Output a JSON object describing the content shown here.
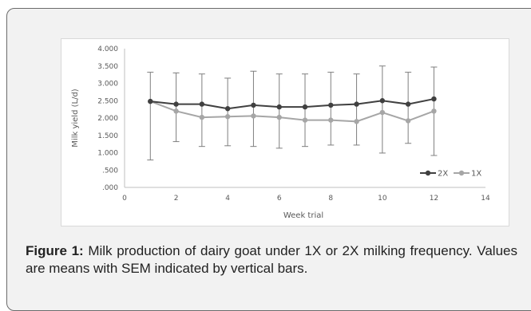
{
  "chart_data": {
    "type": "line",
    "xlabel": "Week trial",
    "ylabel": "Milk yield (L/d)",
    "xlim": [
      0,
      14
    ],
    "ylim": [
      0,
      4
    ],
    "xticks": [
      "0",
      "2",
      "4",
      "6",
      "8",
      "10",
      "12",
      "14"
    ],
    "yticks": [
      ".000",
      ".500",
      "1.000",
      "1.500",
      "2.000",
      "2.500",
      "3.000",
      "3.500",
      "4.000"
    ],
    "grid": false,
    "legend_position": "bottom-right",
    "x": [
      1,
      2,
      3,
      4,
      5,
      6,
      7,
      8,
      9,
      10,
      11,
      12
    ],
    "series": [
      {
        "name": "2X",
        "color": "#404040",
        "values": [
          2.48,
          2.4,
          2.4,
          2.27,
          2.37,
          2.32,
          2.32,
          2.37,
          2.4,
          2.5,
          2.4,
          2.55
        ],
        "error_upper": [
          3.32,
          3.3,
          3.27,
          3.15,
          3.35,
          3.27,
          3.27,
          3.32,
          3.27,
          3.5,
          3.32,
          3.47
        ],
        "error_lower": [
          0.79,
          1.32,
          1.18,
          1.2,
          1.18,
          1.13,
          1.18,
          1.22,
          1.22,
          0.99,
          1.27,
          0.92
        ]
      },
      {
        "name": "1X",
        "color": "#a6a6a6",
        "values": [
          2.48,
          2.2,
          2.02,
          2.04,
          2.06,
          2.02,
          1.94,
          1.94,
          1.9,
          2.16,
          1.92,
          2.2
        ],
        "error_upper": [],
        "error_lower": []
      }
    ]
  },
  "caption": {
    "label": "Figure 1:",
    "text": " Milk production of dairy goat under 1X or 2X milking frequency. Values are means with SEM indicated by vertical bars."
  }
}
